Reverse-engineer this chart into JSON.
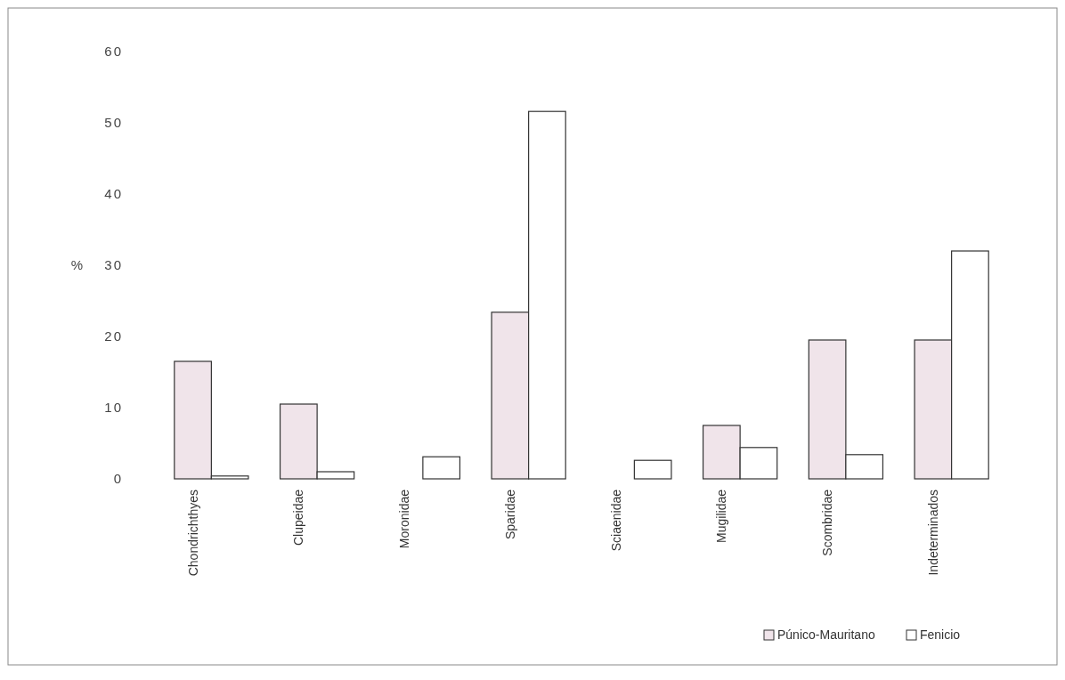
{
  "chart_data": {
    "type": "bar",
    "ylabel": "%",
    "categories": [
      "Chondrichthyes",
      "Clupeidae",
      "Moronidae",
      "Sparidae",
      "Sciaenidae",
      "Mugilidae",
      "Scombridae",
      "Indeterminados"
    ],
    "series": [
      {
        "name": "Púnico-Mauritano",
        "color": "#f0e4ea",
        "values": [
          16.5,
          10.5,
          null,
          23.4,
          null,
          7.5,
          19.5,
          19.5
        ]
      },
      {
        "name": "Fenicio",
        "color": "#ffffff",
        "values": [
          0.4,
          1.0,
          3.1,
          51.6,
          2.6,
          4.4,
          3.4,
          32.0
        ]
      }
    ],
    "ylim": [
      0,
      60
    ],
    "yticks": [
      0,
      10,
      20,
      30,
      40,
      50,
      60
    ],
    "grid": false,
    "legend": "bottom right"
  }
}
